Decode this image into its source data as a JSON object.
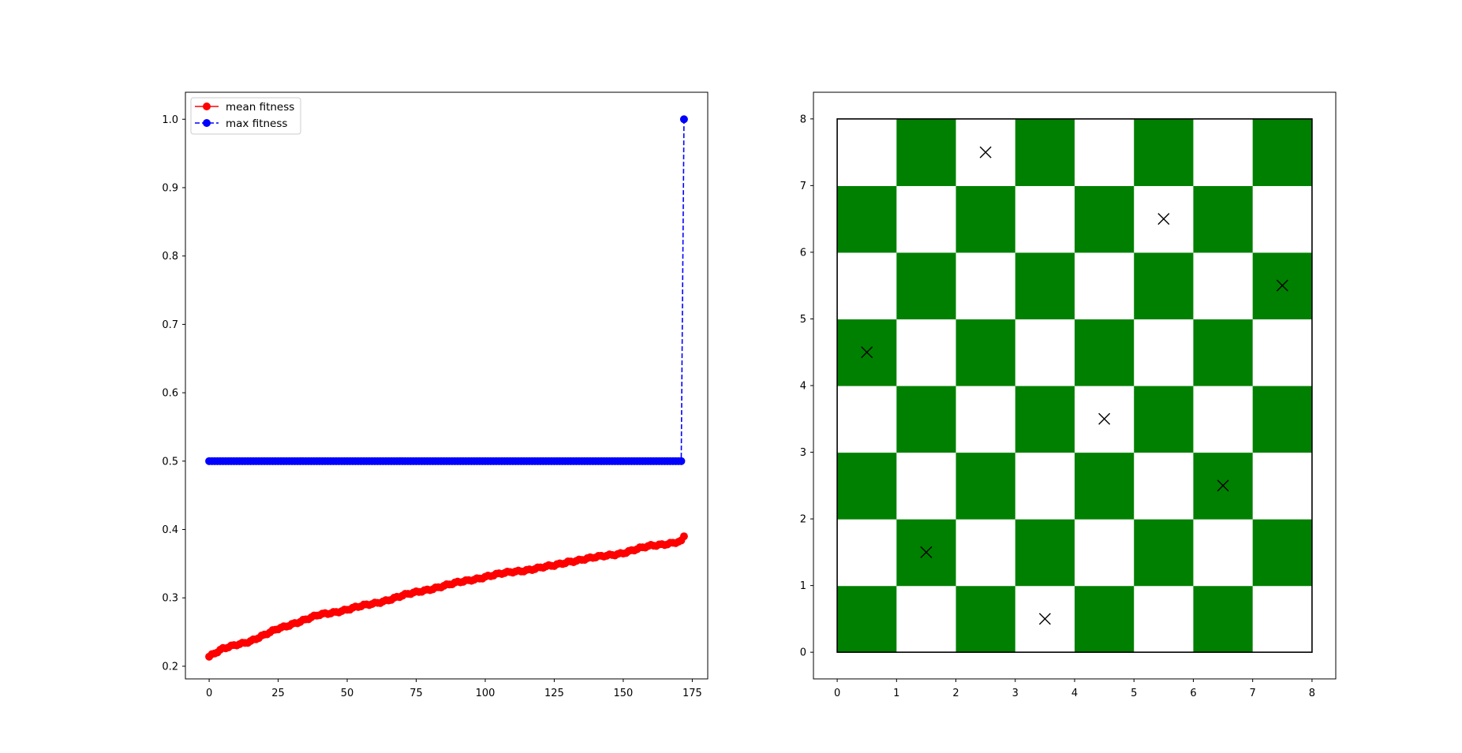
{
  "chart_data": [
    {
      "type": "line",
      "xlim": [
        -8.6,
        180.6
      ],
      "ylim": [
        0.1815,
        1.0395
      ],
      "x_ticks": [
        0,
        25,
        50,
        75,
        100,
        125,
        150,
        175
      ],
      "y_ticks": [
        0.2,
        0.3,
        0.4,
        0.5,
        0.6,
        0.7,
        0.8,
        0.9,
        1.0
      ],
      "legend_position": "upper-left",
      "grid": false,
      "series": [
        {
          "name": "mean fitness",
          "color": "#ff0000",
          "style": "solid",
          "marker": "circle",
          "x_start": 0,
          "x_end": 172,
          "anchors": [
            [
              0,
              0.214
            ],
            [
              5,
              0.225
            ],
            [
              10,
              0.232
            ],
            [
              15,
              0.237
            ],
            [
              20,
              0.245
            ],
            [
              25,
              0.255
            ],
            [
              30,
              0.262
            ],
            [
              35,
              0.268
            ],
            [
              40,
              0.275
            ],
            [
              50,
              0.283
            ],
            [
              60,
              0.292
            ],
            [
              70,
              0.303
            ],
            [
              80,
              0.313
            ],
            [
              90,
              0.322
            ],
            [
              100,
              0.331
            ],
            [
              110,
              0.338
            ],
            [
              120,
              0.344
            ],
            [
              125,
              0.347
            ],
            [
              130,
              0.353
            ],
            [
              140,
              0.359
            ],
            [
              150,
              0.366
            ],
            [
              160,
              0.376
            ],
            [
              170,
              0.382
            ],
            [
              171,
              0.384
            ],
            [
              172,
              0.39
            ]
          ]
        },
        {
          "name": "max fitness",
          "color": "#0000ff",
          "style": "dashed",
          "marker": "circle",
          "x_start": 0,
          "x_end": 172,
          "constant_value": 0.5,
          "last_value": 1.0
        }
      ]
    },
    {
      "type": "heatmap",
      "xlim": [
        -0.4,
        8.4
      ],
      "ylim": [
        -0.4,
        8.4
      ],
      "x_ticks": [
        0,
        1,
        2,
        3,
        4,
        5,
        6,
        7,
        8
      ],
      "y_ticks": [
        0,
        1,
        2,
        3,
        4,
        5,
        6,
        7,
        8
      ],
      "dark_color": "#008000",
      "light_color": "#ffffff",
      "grid": false,
      "queens": [
        [
          2.5,
          7.5
        ],
        [
          5.5,
          6.5
        ],
        [
          7.5,
          5.5
        ],
        [
          0.5,
          4.5
        ],
        [
          4.5,
          3.5
        ],
        [
          6.5,
          2.5
        ],
        [
          1.5,
          1.5
        ],
        [
          3.5,
          0.5
        ]
      ]
    }
  ]
}
